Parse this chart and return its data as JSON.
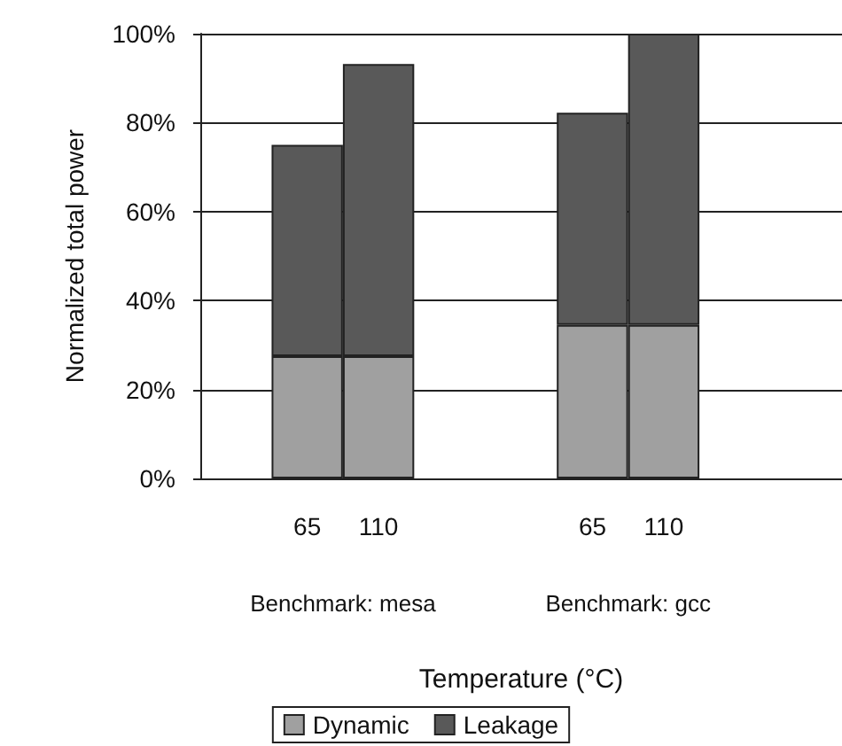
{
  "chart_data": {
    "type": "bar",
    "stacked": true,
    "xlabel": "Temperature (°C)",
    "ylabel": "Normalized total power",
    "categories": [
      null,
      "65",
      "110",
      null,
      null,
      "65",
      "110",
      null,
      null
    ],
    "series": [
      {
        "name": "Dynamic",
        "color": "#a0a0a0",
        "values": [
          null,
          27.5,
          27.5,
          null,
          null,
          34.5,
          34.5,
          null,
          null
        ]
      },
      {
        "name": "Leakage",
        "color": "#595959",
        "values": [
          null,
          47.5,
          65.7,
          null,
          null,
          47.7,
          65.5,
          null,
          null
        ]
      }
    ],
    "ylim": [
      0,
      100
    ],
    "yticks": [
      {
        "value": 0,
        "label": "0%"
      },
      {
        "value": 20,
        "label": "20%"
      },
      {
        "value": 40,
        "label": "40%"
      },
      {
        "value": 60,
        "label": "60%"
      },
      {
        "value": 80,
        "label": "80%"
      },
      {
        "value": 100,
        "label": "100%"
      }
    ],
    "grid": "y",
    "legend": "bottom",
    "annotations": [
      "Benchmark: mesa",
      "Benchmark: gcc"
    ]
  }
}
